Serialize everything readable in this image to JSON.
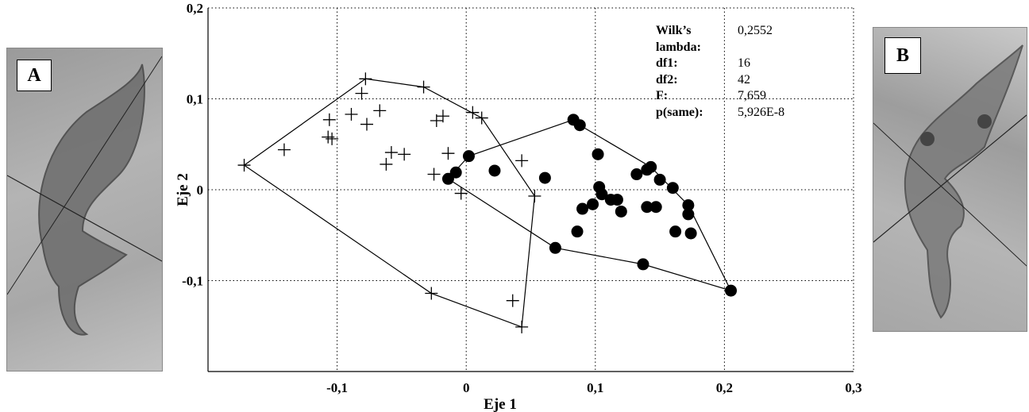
{
  "panels": {
    "left_label": "A",
    "right_label": "B"
  },
  "stats": [
    {
      "key": "Wilk’s lambda:",
      "value": "0,2552"
    },
    {
      "key": "df1:",
      "value": "16"
    },
    {
      "key": "df2:",
      "value": "42"
    },
    {
      "key": "F:",
      "value": "7,659"
    },
    {
      "key": "p(same):",
      "value": "5,926E-8"
    }
  ],
  "chart_data": {
    "type": "scatter",
    "xlabel": "Eje 1",
    "ylabel": "Eje 2",
    "xlim": [
      -0.2,
      0.3
    ],
    "ylim": [
      -0.2,
      0.2
    ],
    "x_ticks": [
      {
        "value": -0.1,
        "label": "-0,1"
      },
      {
        "value": 0,
        "label": "0"
      },
      {
        "value": 0.1,
        "label": "0,1"
      },
      {
        "value": 0.2,
        "label": "0,2"
      },
      {
        "value": 0.3,
        "label": "0,3"
      }
    ],
    "y_ticks": [
      {
        "value": -0.1,
        "label": "-0,1"
      },
      {
        "value": 0,
        "label": "0"
      },
      {
        "value": 0.1,
        "label": "0,1"
      },
      {
        "value": 0.2,
        "label": "0,2"
      }
    ],
    "grid": true,
    "series": [
      {
        "marker": "plus",
        "points": [
          [
            -0.172,
            0.027
          ],
          [
            -0.141,
            0.044
          ],
          [
            -0.106,
            0.077
          ],
          [
            -0.107,
            0.058
          ],
          [
            -0.104,
            0.056
          ],
          [
            -0.089,
            0.083
          ],
          [
            -0.081,
            0.106
          ],
          [
            -0.078,
            0.122
          ],
          [
            -0.077,
            0.072
          ],
          [
            -0.067,
            0.087
          ],
          [
            -0.062,
            0.028
          ],
          [
            -0.058,
            0.041
          ],
          [
            -0.048,
            0.039
          ],
          [
            -0.033,
            0.113
          ],
          [
            -0.025,
            0.017
          ],
          [
            -0.023,
            0.076
          ],
          [
            -0.018,
            0.081
          ],
          [
            -0.014,
            0.04
          ],
          [
            -0.004,
            -0.004
          ],
          [
            0.005,
            0.085
          ],
          [
            0.012,
            0.079
          ],
          [
            -0.027,
            -0.114
          ],
          [
            0.036,
            -0.122
          ],
          [
            0.043,
            0.032
          ],
          [
            0.043,
            -0.151
          ],
          [
            0.053,
            -0.007
          ]
        ],
        "hull": [
          [
            -0.172,
            0.027
          ],
          [
            -0.078,
            0.122
          ],
          [
            -0.033,
            0.113
          ],
          [
            0.012,
            0.079
          ],
          [
            0.053,
            -0.007
          ],
          [
            0.043,
            -0.151
          ],
          [
            -0.027,
            -0.114
          ]
        ]
      },
      {
        "marker": "dot",
        "points": [
          [
            -0.014,
            0.012
          ],
          [
            -0.008,
            0.019
          ],
          [
            0.002,
            0.037
          ],
          [
            0.022,
            0.021
          ],
          [
            0.061,
            0.013
          ],
          [
            0.069,
            -0.064
          ],
          [
            0.083,
            0.077
          ],
          [
            0.086,
            -0.046
          ],
          [
            0.088,
            0.071
          ],
          [
            0.09,
            -0.021
          ],
          [
            0.098,
            -0.016
          ],
          [
            0.102,
            0.039
          ],
          [
            0.103,
            0.003
          ],
          [
            0.105,
            -0.005
          ],
          [
            0.112,
            -0.011
          ],
          [
            0.117,
            -0.011
          ],
          [
            0.12,
            -0.024
          ],
          [
            0.132,
            0.017
          ],
          [
            0.137,
            -0.082
          ],
          [
            0.14,
            0.022
          ],
          [
            0.14,
            -0.019
          ],
          [
            0.143,
            0.025
          ],
          [
            0.147,
            -0.019
          ],
          [
            0.15,
            0.011
          ],
          [
            0.16,
            0.002
          ],
          [
            0.162,
            -0.046
          ],
          [
            0.172,
            -0.017
          ],
          [
            0.172,
            -0.027
          ],
          [
            0.174,
            -0.048
          ],
          [
            0.205,
            -0.111
          ]
        ],
        "hull": [
          [
            -0.014,
            0.012
          ],
          [
            0.002,
            0.037
          ],
          [
            0.083,
            0.077
          ],
          [
            0.088,
            0.071
          ],
          [
            0.143,
            0.025
          ],
          [
            0.172,
            -0.017
          ],
          [
            0.205,
            -0.111
          ],
          [
            0.137,
            -0.082
          ],
          [
            0.069,
            -0.064
          ]
        ]
      }
    ]
  }
}
